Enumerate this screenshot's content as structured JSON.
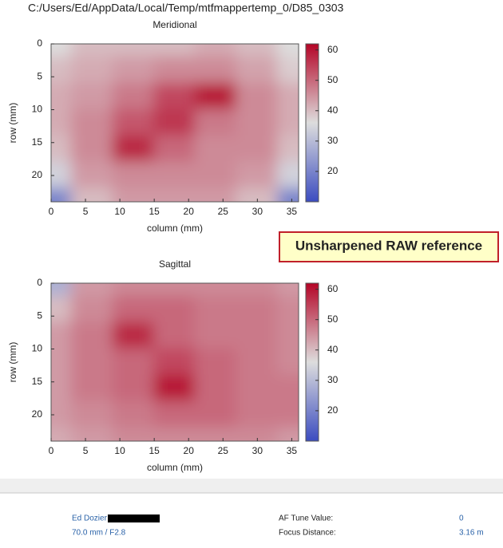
{
  "window_title": "C:/Users/Ed/AppData/Local/Temp/mtfmappertemp_0/D85_0303",
  "chart_data": [
    {
      "type": "heatmap",
      "title": "Meridional",
      "x_label": "column (mm)",
      "y_label": "row (mm)",
      "x": [
        0,
        6,
        12,
        18,
        24,
        30,
        36
      ],
      "y": [
        0,
        4,
        8,
        12,
        16,
        20,
        24
      ],
      "z": [
        [
          36,
          40,
          40,
          40,
          42,
          40,
          36
        ],
        [
          40,
          42,
          44,
          46,
          46,
          43,
          38
        ],
        [
          42,
          44,
          48,
          54,
          60,
          46,
          42
        ],
        [
          42,
          46,
          52,
          56,
          48,
          46,
          42
        ],
        [
          40,
          46,
          58,
          50,
          46,
          46,
          40
        ],
        [
          34,
          44,
          46,
          46,
          46,
          44,
          34
        ],
        [
          20,
          40,
          44,
          44,
          44,
          40,
          20
        ]
      ],
      "xlim": [
        0,
        36
      ],
      "ylim": [
        0,
        24
      ],
      "y_inverted": true,
      "xticks": [
        0,
        5,
        10,
        15,
        20,
        25,
        30,
        35
      ],
      "yticks": [
        0,
        5,
        10,
        15,
        20
      ],
      "clim": [
        10,
        62
      ],
      "cticks": [
        20,
        30,
        40,
        50,
        60
      ],
      "colormap": [
        "#3b4cc0",
        "#dddddd",
        "#b40426"
      ]
    },
    {
      "type": "heatmap",
      "title": "Sagittal",
      "x_label": "column (mm)",
      "y_label": "row (mm)",
      "x": [
        0,
        6,
        12,
        18,
        24,
        30,
        36
      ],
      "y": [
        0,
        4,
        8,
        12,
        16,
        20,
        24
      ],
      "z": [
        [
          28,
          44,
          46,
          46,
          46,
          46,
          44
        ],
        [
          40,
          46,
          50,
          50,
          48,
          48,
          46
        ],
        [
          44,
          48,
          58,
          50,
          48,
          48,
          46
        ],
        [
          44,
          48,
          50,
          54,
          50,
          48,
          46
        ],
        [
          44,
          48,
          50,
          60,
          50,
          48,
          48
        ],
        [
          44,
          46,
          48,
          50,
          50,
          48,
          48
        ],
        [
          42,
          44,
          46,
          46,
          46,
          46,
          44
        ]
      ],
      "xlim": [
        0,
        36
      ],
      "ylim": [
        0,
        24
      ],
      "y_inverted": true,
      "xticks": [
        0,
        5,
        10,
        15,
        20,
        25,
        30,
        35
      ],
      "yticks": [
        0,
        5,
        10,
        15,
        20
      ],
      "clim": [
        10,
        62
      ],
      "cticks": [
        20,
        30,
        40,
        50,
        60
      ],
      "colormap": [
        "#3b4cc0",
        "#dddddd",
        "#b40426"
      ]
    }
  ],
  "annotation": "Unsharpened RAW reference",
  "footer": {
    "author": "Ed Dozier",
    "lens": "70.0 mm / F2.8",
    "af_tune_label": "AF Tune Value:",
    "af_tune_value": "0",
    "focus_label": "Focus Distance:",
    "focus_value": "3.16 m"
  }
}
